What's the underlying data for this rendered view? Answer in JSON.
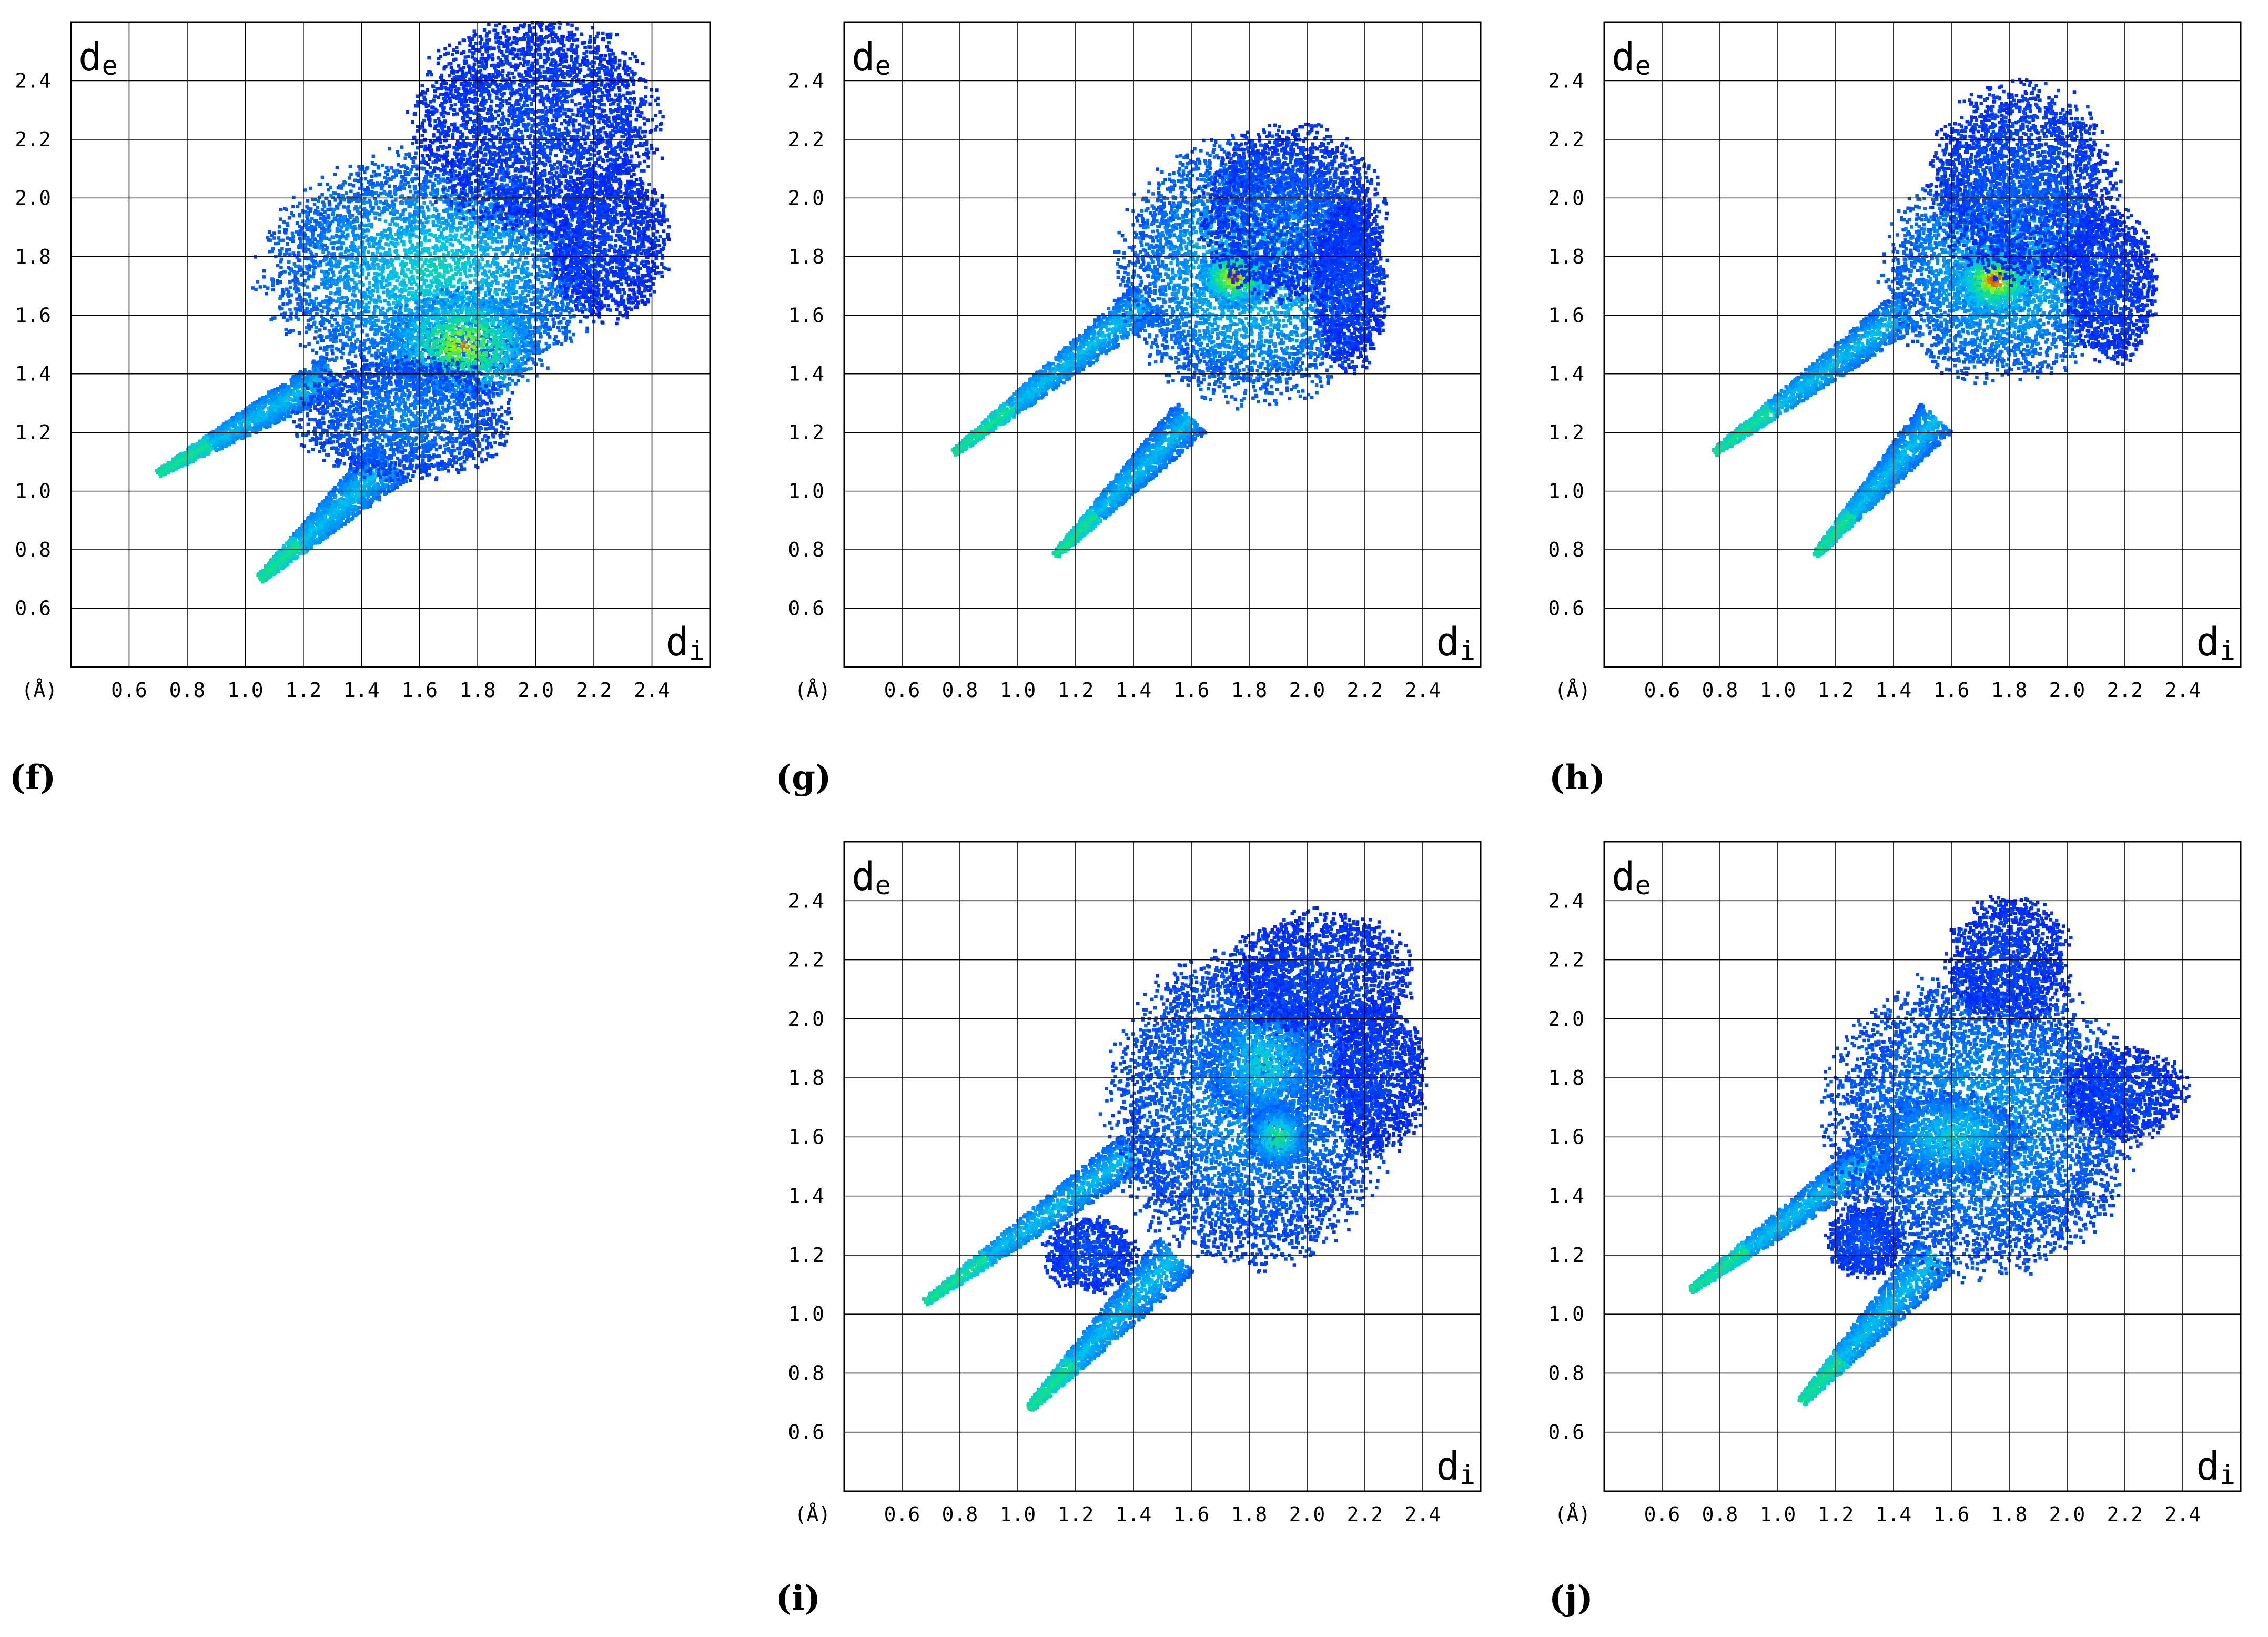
{
  "chart_data": [
    {
      "type": "heatmap",
      "panel_label": "(f)",
      "xlabel": "d",
      "xlabel_sub": "i",
      "ylabel": "d",
      "ylabel_sub": "e",
      "unit_label": "(Å)",
      "xlim": [
        0.4,
        2.6
      ],
      "ylim": [
        0.4,
        2.6
      ],
      "x_ticks": [
        0.6,
        0.8,
        1.0,
        1.2,
        1.4,
        1.6,
        1.8,
        2.0,
        2.2,
        2.4
      ],
      "y_ticks": [
        0.6,
        0.8,
        1.0,
        1.2,
        1.4,
        1.6,
        1.8,
        2.0,
        2.2,
        2.4
      ],
      "x_tick_labels": [
        "0.6",
        "0.8",
        "1.0",
        "1.2",
        "1.4",
        "1.6",
        "1.8",
        "2.0",
        "2.2",
        "2.4"
      ],
      "y_tick_labels": [
        "0.6",
        "0.8",
        "1.0",
        "1.2",
        "1.4",
        "1.6",
        "1.8",
        "2.0",
        "2.2",
        "2.4"
      ],
      "grid": true,
      "spikes": [
        {
          "from": [
            0.7,
            1.06
          ],
          "to": [
            1.3,
            1.4
          ],
          "width": 0.05
        },
        {
          "from": [
            1.05,
            0.7
          ],
          "to": [
            1.5,
            1.1
          ],
          "width": 0.06
        }
      ],
      "density_regions": [
        {
          "center": [
            1.65,
            1.75
          ],
          "radii": [
            0.55,
            0.38
          ],
          "level": 0.55
        },
        {
          "center": [
            1.75,
            1.5
          ],
          "radii": [
            0.25,
            0.18
          ],
          "level": 0.9
        },
        {
          "center": [
            2.0,
            2.25
          ],
          "radii": [
            0.4,
            0.35
          ],
          "level": 0.1
        },
        {
          "center": [
            1.55,
            1.25
          ],
          "radii": [
            0.35,
            0.2
          ],
          "level": 0.3
        },
        {
          "center": [
            2.25,
            1.85
          ],
          "radii": [
            0.2,
            0.25
          ],
          "level": 0.08
        }
      ]
    },
    {
      "type": "heatmap",
      "panel_label": "(g)",
      "xlabel": "d",
      "xlabel_sub": "i",
      "ylabel": "d",
      "ylabel_sub": "e",
      "unit_label": "(Å)",
      "xlim": [
        0.4,
        2.6
      ],
      "ylim": [
        0.4,
        2.6
      ],
      "x_ticks": [
        0.6,
        0.8,
        1.0,
        1.2,
        1.4,
        1.6,
        1.8,
        2.0,
        2.2,
        2.4
      ],
      "y_ticks": [
        0.6,
        0.8,
        1.0,
        1.2,
        1.4,
        1.6,
        1.8,
        2.0,
        2.2,
        2.4
      ],
      "x_tick_labels": [
        "0.6",
        "0.8",
        "1.0",
        "1.2",
        "1.4",
        "1.6",
        "1.8",
        "2.0",
        "2.2",
        "2.4"
      ],
      "y_tick_labels": [
        "0.6",
        "0.8",
        "1.0",
        "1.2",
        "1.4",
        "1.6",
        "1.8",
        "2.0",
        "2.2",
        "2.4"
      ],
      "grid": true,
      "spikes": [
        {
          "from": [
            0.78,
            1.13
          ],
          "to": [
            1.45,
            1.65
          ],
          "width": 0.05
        },
        {
          "from": [
            1.13,
            0.78
          ],
          "to": [
            1.6,
            1.25
          ],
          "width": 0.05
        }
      ],
      "density_regions": [
        {
          "center": [
            1.8,
            1.75
          ],
          "radii": [
            0.42,
            0.42
          ],
          "level": 0.55
        },
        {
          "center": [
            1.75,
            1.73
          ],
          "radii": [
            0.12,
            0.1
          ],
          "level": 1.0
        },
        {
          "center": [
            1.95,
            1.95
          ],
          "radii": [
            0.3,
            0.28
          ],
          "level": 0.15
        },
        {
          "center": [
            2.15,
            1.7
          ],
          "radii": [
            0.12,
            0.28
          ],
          "level": 0.1
        }
      ]
    },
    {
      "type": "heatmap",
      "panel_label": "(h)",
      "xlabel": "d",
      "xlabel_sub": "i",
      "ylabel": "d",
      "ylabel_sub": "e",
      "unit_label": "(Å)",
      "xlim": [
        0.4,
        2.6
      ],
      "ylim": [
        0.4,
        2.6
      ],
      "x_ticks": [
        0.6,
        0.8,
        1.0,
        1.2,
        1.4,
        1.6,
        1.8,
        2.0,
        2.2,
        2.4
      ],
      "y_ticks": [
        0.6,
        0.8,
        1.0,
        1.2,
        1.4,
        1.6,
        1.8,
        2.0,
        2.2,
        2.4
      ],
      "x_tick_labels": [
        "0.6",
        "0.8",
        "1.0",
        "1.2",
        "1.4",
        "1.6",
        "1.8",
        "2.0",
        "2.2",
        "2.4"
      ],
      "y_tick_labels": [
        "0.6",
        "0.8",
        "1.0",
        "1.2",
        "1.4",
        "1.6",
        "1.8",
        "2.0",
        "2.2",
        "2.4"
      ],
      "grid": true,
      "spikes": [
        {
          "from": [
            0.78,
            1.13
          ],
          "to": [
            1.45,
            1.62
          ],
          "width": 0.05
        },
        {
          "from": [
            1.13,
            0.78
          ],
          "to": [
            1.55,
            1.25
          ],
          "width": 0.05
        }
      ],
      "density_regions": [
        {
          "center": [
            1.78,
            1.75
          ],
          "radii": [
            0.38,
            0.35
          ],
          "level": 0.55
        },
        {
          "center": [
            1.75,
            1.72
          ],
          "radii": [
            0.14,
            0.12
          ],
          "level": 1.0
        },
        {
          "center": [
            1.85,
            2.05
          ],
          "radii": [
            0.3,
            0.32
          ],
          "level": 0.15
        },
        {
          "center": [
            2.15,
            1.7
          ],
          "radii": [
            0.15,
            0.25
          ],
          "level": 0.1
        }
      ]
    },
    {
      "type": "heatmap",
      "panel_label": "(i)",
      "xlabel": "d",
      "xlabel_sub": "i",
      "ylabel": "d",
      "ylabel_sub": "e",
      "unit_label": "(Å)",
      "xlim": [
        0.4,
        2.6
      ],
      "ylim": [
        0.4,
        2.6
      ],
      "x_ticks": [
        0.6,
        0.8,
        1.0,
        1.2,
        1.4,
        1.6,
        1.8,
        2.0,
        2.2,
        2.4
      ],
      "y_ticks": [
        0.6,
        0.8,
        1.0,
        1.2,
        1.4,
        1.6,
        1.8,
        2.0,
        2.2,
        2.4
      ],
      "x_tick_labels": [
        "0.6",
        "0.8",
        "1.0",
        "1.2",
        "1.4",
        "1.6",
        "1.8",
        "2.0",
        "2.2",
        "2.4"
      ],
      "y_tick_labels": [
        "0.6",
        "0.8",
        "1.0",
        "1.2",
        "1.4",
        "1.6",
        "1.8",
        "2.0",
        "2.2",
        "2.4"
      ],
      "grid": true,
      "spikes": [
        {
          "from": [
            0.68,
            1.04
          ],
          "to": [
            1.4,
            1.55
          ],
          "width": 0.05
        },
        {
          "from": [
            1.04,
            0.68
          ],
          "to": [
            1.55,
            1.2
          ],
          "width": 0.06
        }
      ],
      "density_regions": [
        {
          "center": [
            1.8,
            1.7
          ],
          "radii": [
            0.45,
            0.5
          ],
          "level": 0.35
        },
        {
          "center": [
            1.85,
            1.85
          ],
          "radii": [
            0.2,
            0.2
          ],
          "level": 0.55
        },
        {
          "center": [
            1.9,
            1.6
          ],
          "radii": [
            0.1,
            0.1
          ],
          "level": 0.7
        },
        {
          "center": [
            1.25,
            1.2
          ],
          "radii": [
            0.15,
            0.12
          ],
          "level": 0.15
        },
        {
          "center": [
            2.05,
            2.15
          ],
          "radii": [
            0.3,
            0.2
          ],
          "level": 0.1
        },
        {
          "center": [
            2.25,
            1.8
          ],
          "radii": [
            0.15,
            0.25
          ],
          "level": 0.08
        }
      ]
    },
    {
      "type": "heatmap",
      "panel_label": "(j)",
      "xlabel": "d",
      "xlabel_sub": "i",
      "ylabel": "d",
      "ylabel_sub": "e",
      "unit_label": "(Å)",
      "xlim": [
        0.4,
        2.6
      ],
      "ylim": [
        0.4,
        2.6
      ],
      "x_ticks": [
        0.6,
        0.8,
        1.0,
        1.2,
        1.4,
        1.6,
        1.8,
        2.0,
        2.2,
        2.4
      ],
      "y_ticks": [
        0.6,
        0.8,
        1.0,
        1.2,
        1.4,
        1.6,
        1.8,
        2.0,
        2.2,
        2.4
      ],
      "x_tick_labels": [
        "0.6",
        "0.8",
        "1.0",
        "1.2",
        "1.4",
        "1.6",
        "1.8",
        "2.0",
        "2.2",
        "2.4"
      ],
      "y_tick_labels": [
        "0.6",
        "0.8",
        "1.0",
        "1.2",
        "1.4",
        "1.6",
        "1.8",
        "2.0",
        "2.2",
        "2.4"
      ],
      "grid": true,
      "spikes": [
        {
          "from": [
            0.7,
            1.08
          ],
          "to": [
            1.35,
            1.55
          ],
          "width": 0.05
        },
        {
          "from": [
            1.08,
            0.7
          ],
          "to": [
            1.55,
            1.2
          ],
          "width": 0.06
        }
      ],
      "density_regions": [
        {
          "center": [
            1.7,
            1.65
          ],
          "radii": [
            0.5,
            0.48
          ],
          "level": 0.4
        },
        {
          "center": [
            1.6,
            1.6
          ],
          "radii": [
            0.25,
            0.15
          ],
          "level": 0.55
        },
        {
          "center": [
            1.8,
            2.2
          ],
          "radii": [
            0.2,
            0.2
          ],
          "level": 0.1
        },
        {
          "center": [
            1.3,
            1.25
          ],
          "radii": [
            0.12,
            0.12
          ],
          "level": 0.15
        },
        {
          "center": [
            2.2,
            1.75
          ],
          "radii": [
            0.2,
            0.15
          ],
          "level": 0.1
        }
      ]
    }
  ]
}
